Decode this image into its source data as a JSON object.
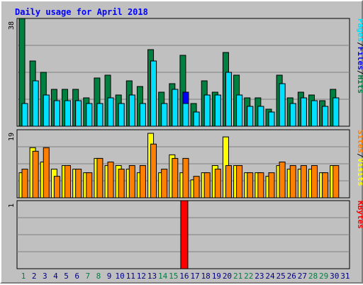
{
  "chart_data": [
    {
      "type": "bar",
      "title": "Daily usage for April 2018",
      "categories": [
        "1",
        "2",
        "3",
        "4",
        "5",
        "6",
        "7",
        "8",
        "9",
        "10",
        "11",
        "12",
        "13",
        "14",
        "15",
        "16",
        "17",
        "18",
        "19",
        "20",
        "21",
        "22",
        "23",
        "24",
        "25",
        "26",
        "27",
        "28",
        "29",
        "30",
        "31"
      ],
      "weekend_days": [
        "1",
        "7",
        "8",
        "14",
        "15",
        "21",
        "22",
        "28",
        "29"
      ],
      "ylim": [
        0,
        38
      ],
      "y_tick_label": "38",
      "legend": [
        "Pages",
        "/",
        "Files",
        "/",
        "Hits"
      ],
      "series": [
        {
          "name": "Hits",
          "color": "#008040",
          "values": [
            38,
            23,
            19,
            13,
            13,
            13,
            10,
            17,
            18,
            11,
            16,
            14,
            27,
            12,
            15,
            25,
            8,
            16,
            12,
            26,
            18,
            10,
            10,
            6,
            18,
            10,
            12,
            11,
            9,
            13,
            0
          ]
        },
        {
          "name": "Files",
          "color": "#0000ff",
          "values": [
            8,
            16,
            11,
            9,
            9,
            9,
            8,
            8,
            10,
            8,
            11,
            8,
            23,
            8,
            13,
            12,
            5,
            11,
            11,
            19,
            11,
            7,
            7,
            5,
            15,
            8,
            10,
            9,
            7,
            10,
            0
          ]
        },
        {
          "name": "Pages",
          "color": "#00e0ff",
          "values": [
            8,
            16,
            11,
            9,
            9,
            9,
            8,
            8,
            10,
            8,
            11,
            8,
            23,
            8,
            13,
            8,
            5,
            11,
            11,
            19,
            11,
            7,
            7,
            5,
            15,
            8,
            10,
            9,
            7,
            10,
            0
          ]
        }
      ]
    },
    {
      "type": "bar",
      "ylim": [
        0,
        19
      ],
      "y_tick_label": "19",
      "legend": [
        "Sites",
        "/",
        "Visits"
      ],
      "series": [
        {
          "name": "Visits",
          "color": "#ffff00",
          "values": [
            7,
            14,
            10,
            8,
            9,
            8,
            7,
            11,
            9,
            9,
            8,
            7,
            18,
            7,
            12,
            7,
            5,
            7,
            9,
            17,
            9,
            7,
            7,
            6,
            9,
            8,
            8,
            8,
            7,
            9,
            0
          ]
        },
        {
          "name": "Sites",
          "color": "#ff8000",
          "values": [
            8,
            13,
            14,
            6,
            9,
            8,
            7,
            11,
            10,
            8,
            9,
            9,
            15,
            8,
            11,
            11,
            6,
            7,
            8,
            9,
            9,
            7,
            7,
            7,
            10,
            9,
            9,
            9,
            7,
            9,
            0
          ]
        }
      ]
    },
    {
      "type": "bar",
      "ylim": [
        0,
        1
      ],
      "y_tick_label": "1",
      "legend": [
        "KBytes"
      ],
      "series": [
        {
          "name": "KBytes",
          "color": "#ff0000",
          "values": [
            0,
            0,
            0,
            0,
            0,
            0,
            0,
            0,
            0,
            0,
            0,
            0,
            0,
            0,
            0,
            1,
            0,
            0,
            0,
            0,
            0,
            0,
            0,
            0,
            0,
            0,
            0,
            0,
            0,
            0,
            0
          ]
        }
      ]
    }
  ],
  "colors": {
    "weekday_label": "#000080",
    "weekend_label": "#008040",
    "title": "#0000ff",
    "separator": "#000000"
  }
}
